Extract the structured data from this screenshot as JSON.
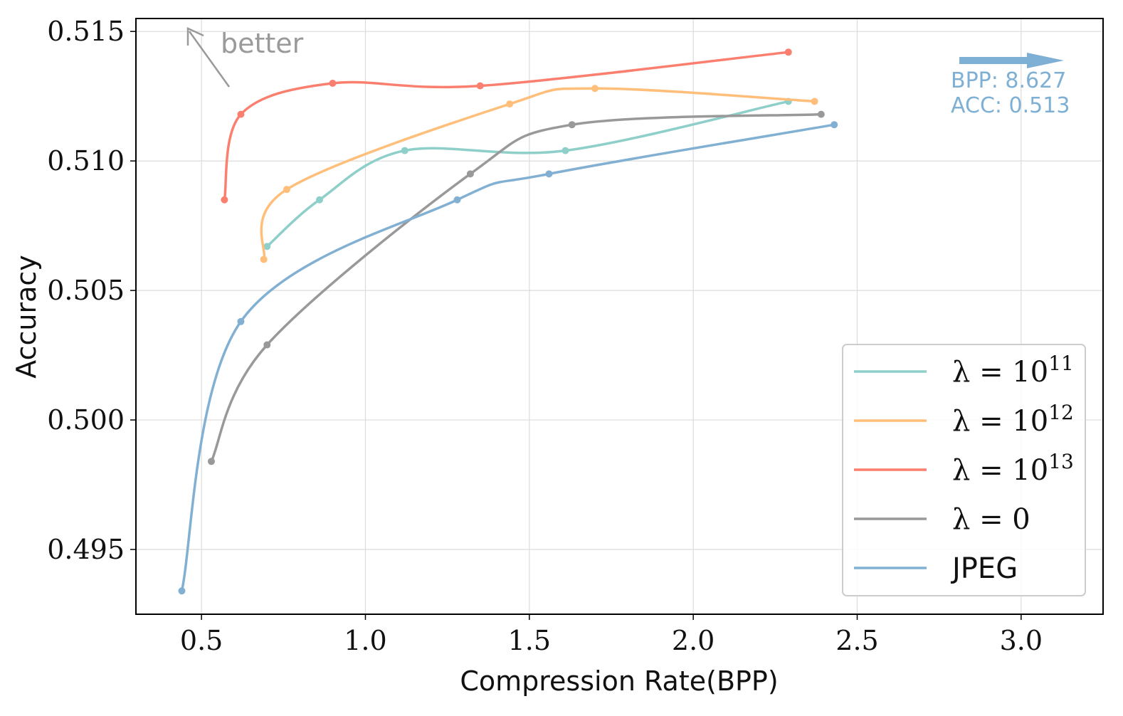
{
  "chart_data": {
    "type": "line",
    "title": "",
    "xlabel": "Compression Rate(BPP)",
    "ylabel": "Accuracy",
    "xlim": [
      0.3,
      3.25
    ],
    "ylim": [
      0.4925,
      0.5155
    ],
    "xticks": [
      0.5,
      1.0,
      1.5,
      2.0,
      2.5,
      3.0
    ],
    "xtick_labels": [
      "0.5",
      "1.0",
      "1.5",
      "2.0",
      "2.5",
      "3.0"
    ],
    "yticks": [
      0.495,
      0.5,
      0.505,
      0.51,
      0.515
    ],
    "ytick_labels": [
      "0.495",
      "0.500",
      "0.505",
      "0.510",
      "0.515"
    ],
    "grid": true,
    "legend_position": "bottom-right",
    "series": [
      {
        "name": "λ = 10",
        "name_exp": "11",
        "color": "#8ecfc9",
        "points": [
          [
            0.7,
            0.5067
          ],
          [
            0.86,
            0.5085
          ],
          [
            1.12,
            0.5104
          ],
          [
            1.61,
            0.5104
          ],
          [
            2.29,
            0.5123
          ]
        ]
      },
      {
        "name": "λ = 10",
        "name_exp": "12",
        "color": "#ffbe7a",
        "points": [
          [
            0.69,
            0.5062
          ],
          [
            0.76,
            0.5089
          ],
          [
            1.44,
            0.5122
          ],
          [
            1.7,
            0.5128
          ],
          [
            2.37,
            0.5123
          ]
        ]
      },
      {
        "name": "λ = 10",
        "name_exp": "13",
        "color": "#fa7f6f",
        "points": [
          [
            0.57,
            0.5085
          ],
          [
            0.62,
            0.5118
          ],
          [
            0.9,
            0.513
          ],
          [
            1.35,
            0.5129
          ],
          [
            2.29,
            0.5142
          ]
        ]
      },
      {
        "name": "λ = 0",
        "name_exp": "",
        "color": "#999999",
        "points": [
          [
            0.53,
            0.4984
          ],
          [
            0.7,
            0.5029
          ],
          [
            1.32,
            0.5095
          ],
          [
            1.63,
            0.5114
          ],
          [
            2.39,
            0.5118
          ]
        ]
      },
      {
        "name": "JPEG",
        "name_exp": "",
        "color": "#82b0d2",
        "points": [
          [
            0.44,
            0.4934
          ],
          [
            0.62,
            0.5038
          ],
          [
            1.28,
            0.5085
          ],
          [
            1.56,
            0.5095
          ],
          [
            2.43,
            0.5114
          ]
        ]
      }
    ],
    "annotations": {
      "better_label": "better",
      "offchart_bpp": "BPP: 8.627",
      "offchart_acc": "ACC: 0.513"
    }
  }
}
